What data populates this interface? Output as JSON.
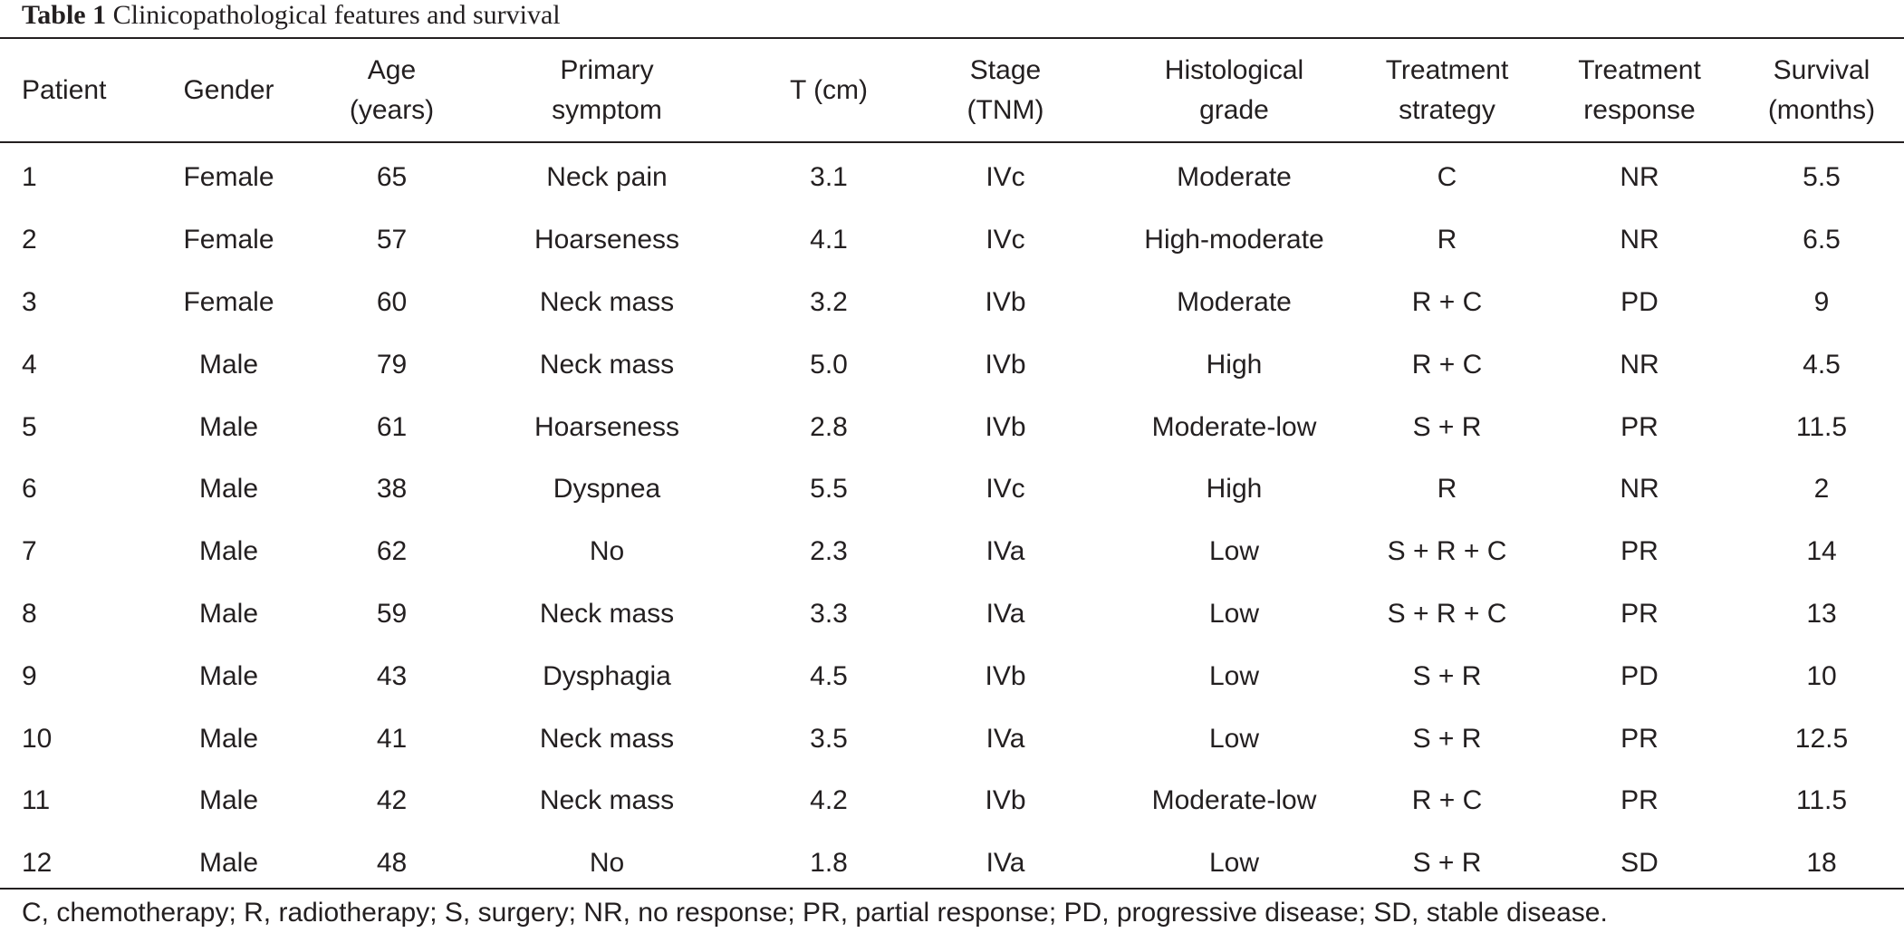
{
  "caption": {
    "label": "Table 1",
    "text": "Clinicopathological features and survival"
  },
  "table": {
    "headers": [
      "Patient",
      "Gender",
      "Age\n(years)",
      "Primary\nsymptom",
      "T (cm)",
      "Stage\n(TNM)",
      "Histological\ngrade",
      "Treatment\nstrategy",
      "Treatment\nresponse",
      "Survival\n(months)"
    ],
    "rows": [
      [
        "1",
        "Female",
        "65",
        "Neck pain",
        "3.1",
        "IVc",
        "Moderate",
        "C",
        "NR",
        "5.5"
      ],
      [
        "2",
        "Female",
        "57",
        "Hoarseness",
        "4.1",
        "IVc",
        "High-moderate",
        "R",
        "NR",
        "6.5"
      ],
      [
        "3",
        "Female",
        "60",
        "Neck mass",
        "3.2",
        "IVb",
        "Moderate",
        "R + C",
        "PD",
        "9"
      ],
      [
        "4",
        "Male",
        "79",
        "Neck mass",
        "5.0",
        "IVb",
        "High",
        "R + C",
        "NR",
        "4.5"
      ],
      [
        "5",
        "Male",
        "61",
        "Hoarseness",
        "2.8",
        "IVb",
        "Moderate-low",
        "S + R",
        "PR",
        "11.5"
      ],
      [
        "6",
        "Male",
        "38",
        "Dyspnea",
        "5.5",
        "IVc",
        "High",
        "R",
        "NR",
        "2"
      ],
      [
        "7",
        "Male",
        "62",
        "No",
        "2.3",
        "IVa",
        "Low",
        "S + R + C",
        "PR",
        "14"
      ],
      [
        "8",
        "Male",
        "59",
        "Neck mass",
        "3.3",
        "IVa",
        "Low",
        "S + R + C",
        "PR",
        "13"
      ],
      [
        "9",
        "Male",
        "43",
        "Dysphagia",
        "4.5",
        "IVb",
        "Low",
        "S + R",
        "PD",
        "10"
      ],
      [
        "10",
        "Male",
        "41",
        "Neck mass",
        "3.5",
        "IVa",
        "Low",
        "S + R",
        "PR",
        "12.5"
      ],
      [
        "11",
        "Male",
        "42",
        "Neck mass",
        "4.2",
        "IVb",
        "Moderate-low",
        "R + C",
        "PR",
        "11.5"
      ],
      [
        "12",
        "Male",
        "48",
        "No",
        "1.8",
        "IVa",
        "Low",
        "S + R",
        "SD",
        "18"
      ]
    ]
  },
  "footnote": "C, chemotherapy; R, radiotherapy; S, surgery; NR, no response; PR, partial response; PD, progressive disease; SD, stable disease."
}
